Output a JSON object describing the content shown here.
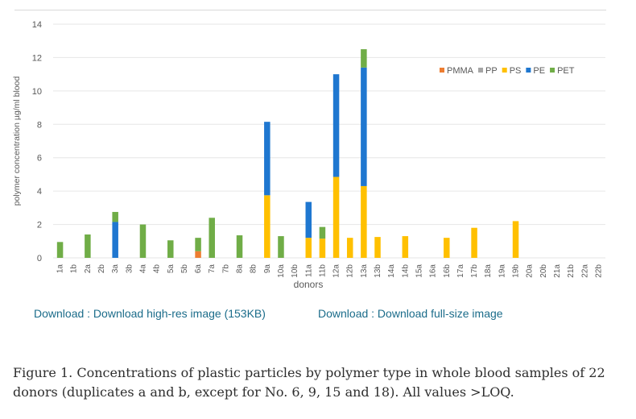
{
  "chart_data": {
    "type": "bar",
    "stacked": true,
    "title": "",
    "xlabel": "donors",
    "ylabel": "polymer concentration µg/ml blood",
    "ylim": [
      0,
      14
    ],
    "yticks": [
      0,
      2,
      4,
      6,
      8,
      10,
      12,
      14
    ],
    "grid": true,
    "legend_position": "top-right",
    "categories": [
      "1a",
      "1b",
      "2a",
      "2b",
      "3a",
      "3b",
      "4a",
      "4b",
      "5a",
      "5b",
      "6a",
      "7a",
      "7b",
      "8a",
      "8b",
      "9a",
      "10a",
      "10b",
      "11a",
      "11b",
      "12a",
      "12b",
      "13a",
      "13b",
      "14a",
      "14b",
      "15a",
      "16a",
      "16b",
      "17a",
      "17b",
      "18a",
      "19a",
      "19b",
      "20a",
      "20b",
      "21a",
      "21b",
      "22a",
      "22b"
    ],
    "series": [
      {
        "name": "PMMA",
        "color": "#ed7d31",
        "values": [
          0,
          0,
          0,
          0,
          0,
          0,
          0,
          0,
          0,
          0,
          0.4,
          0,
          0,
          0,
          0,
          0,
          0,
          0,
          0,
          0,
          0,
          0,
          0,
          0,
          0,
          0,
          0,
          0,
          0,
          0,
          0,
          0,
          0,
          0,
          0,
          0,
          0,
          0,
          0,
          0
        ]
      },
      {
        "name": "PP",
        "color": "#a5a5a5",
        "values": [
          0,
          0,
          0,
          0,
          0,
          0,
          0,
          0,
          0,
          0,
          0,
          0,
          0,
          0,
          0,
          0,
          0,
          0,
          0,
          0,
          0,
          0,
          0,
          0,
          0,
          0,
          0,
          0,
          0,
          0,
          0,
          0,
          0,
          0,
          0,
          0,
          0,
          0,
          0,
          0
        ]
      },
      {
        "name": "PS",
        "color": "#ffc000",
        "values": [
          0,
          0,
          0,
          0,
          0,
          0,
          0,
          0,
          0,
          0,
          0,
          0,
          0,
          0,
          0,
          3.75,
          0,
          0,
          1.2,
          1.15,
          4.85,
          1.2,
          4.3,
          1.25,
          0,
          1.3,
          0,
          0,
          1.2,
          0,
          1.8,
          0,
          0,
          2.2,
          0,
          0,
          0,
          0,
          0,
          0
        ]
      },
      {
        "name": "PE",
        "color": "#1f77d0",
        "values": [
          0,
          0,
          0,
          0,
          2.15,
          0,
          0,
          0,
          0,
          0,
          0,
          0,
          0,
          0,
          0,
          4.4,
          0,
          0,
          2.15,
          0,
          6.15,
          0,
          7.1,
          0,
          0,
          0,
          0,
          0,
          0,
          0,
          0,
          0,
          0,
          0,
          0,
          0,
          0,
          0,
          0,
          0
        ]
      },
      {
        "name": "PET",
        "color": "#70ad47",
        "values": [
          0.95,
          0,
          1.4,
          0,
          0.6,
          0,
          2.0,
          0,
          1.05,
          0,
          0.8,
          2.4,
          0,
          1.35,
          0,
          0,
          1.3,
          0,
          0,
          0.7,
          0,
          0,
          1.1,
          0,
          0,
          0,
          0,
          0,
          0,
          0,
          0,
          0,
          0,
          0,
          0,
          0,
          0,
          0,
          0,
          0
        ]
      }
    ]
  },
  "links": {
    "highres": "Download : Download high-res image (153KB)",
    "fullsize": "Download : Download full-size image"
  },
  "caption": "Figure 1. Concentrations of plastic particles by polymer type in whole blood samples of 22 donors (duplicates a and b, except for No. 6, 9, 15 and 18). All values >LOQ."
}
